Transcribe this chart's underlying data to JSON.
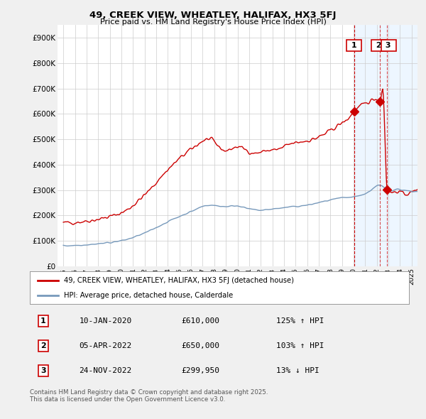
{
  "title": "49, CREEK VIEW, WHEATLEY, HALIFAX, HX3 5FJ",
  "subtitle": "Price paid vs. HM Land Registry's House Price Index (HPI)",
  "bg_color": "#f0f0f0",
  "plot_bg_color": "#ffffff",
  "grid_color": "#cccccc",
  "red_color": "#cc0000",
  "blue_color": "#7799bb",
  "shade_color": "#ddeeff",
  "ylim": [
    0,
    950000
  ],
  "yticks": [
    0,
    100000,
    200000,
    300000,
    400000,
    500000,
    600000,
    700000,
    800000,
    900000
  ],
  "ytick_labels": [
    "£0",
    "£100K",
    "£200K",
    "£300K",
    "£400K",
    "£500K",
    "£600K",
    "£700K",
    "£800K",
    "£900K"
  ],
  "xlim_start": 1994.5,
  "xlim_end": 2025.5,
  "transactions": [
    {
      "num": 1,
      "date": "10-JAN-2020",
      "price": 610000,
      "year": 2020.03,
      "pct": "125%",
      "dir": "↑"
    },
    {
      "num": 2,
      "date": "05-APR-2022",
      "price": 650000,
      "year": 2022.27,
      "pct": "103%",
      "dir": "↑"
    },
    {
      "num": 3,
      "date": "24-NOV-2022",
      "price": 299950,
      "year": 2022.9,
      "pct": "13%",
      "dir": "↓"
    }
  ],
  "legend_red": "49, CREEK VIEW, WHEATLEY, HALIFAX, HX3 5FJ (detached house)",
  "legend_blue": "HPI: Average price, detached house, Calderdale",
  "footer": "Contains HM Land Registry data © Crown copyright and database right 2025.\nThis data is licensed under the Open Government Licence v3.0.",
  "table": [
    [
      "1",
      "10-JAN-2020",
      "£610,000",
      "125% ↑ HPI"
    ],
    [
      "2",
      "05-APR-2022",
      "£650,000",
      "103% ↑ HPI"
    ],
    [
      "3",
      "24-NOV-2022",
      "£299,950",
      "13% ↓ HPI"
    ]
  ]
}
